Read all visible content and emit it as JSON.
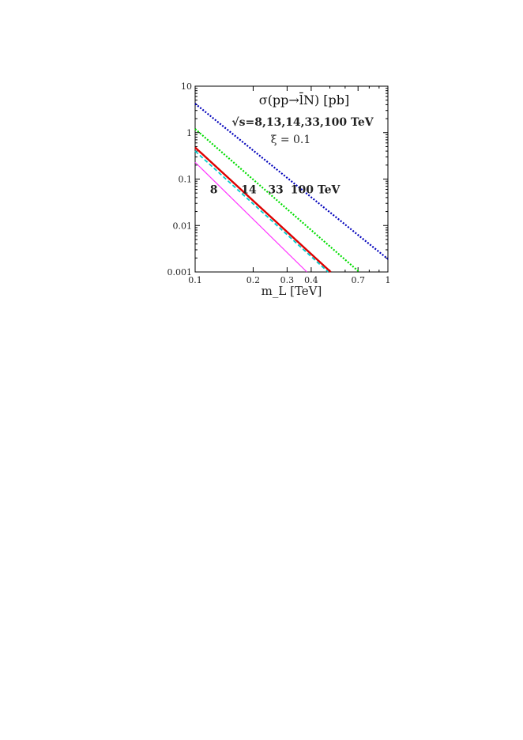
{
  "chart_data": {
    "type": "line",
    "title": "σ(pp→l̄N) [pb]",
    "annotations": [
      "√s=8,13,14,33,100 TeV",
      "ξ = 0.1"
    ],
    "xlabel": "m_L [TeV]",
    "ylabel": "",
    "xscale": "log",
    "yscale": "log",
    "xlim": [
      0.1,
      1
    ],
    "ylim": [
      0.001,
      10
    ],
    "x_ticks": [
      0.1,
      0.2,
      0.3,
      0.4,
      0.7,
      1
    ],
    "x_tick_labels": [
      "0.1",
      "0.2",
      "0.3",
      "0.4",
      "0.7",
      "1"
    ],
    "y_ticks": [
      0.001,
      0.01,
      0.1,
      1,
      10
    ],
    "y_tick_labels": [
      "0.001",
      "0.01",
      "0.1",
      "1",
      "10"
    ],
    "legend": "none",
    "grid": false,
    "series": [
      {
        "name": "8",
        "color": "#ff33ff",
        "style": "solid",
        "x": [
          0.1,
          0.38
        ],
        "y": [
          0.23,
          0.001
        ]
      },
      {
        "name": "13",
        "color": "#00cccc",
        "style": "dashed",
        "x": [
          0.1,
          0.49
        ],
        "y": [
          0.4,
          0.001
        ]
      },
      {
        "name": "14",
        "color": "#dd0000",
        "style": "solid",
        "x": [
          0.1,
          0.505
        ],
        "y": [
          0.48,
          0.001
        ]
      },
      {
        "name": "33",
        "color": "#00dd00",
        "style": "dotted",
        "x": [
          0.1,
          0.71
        ],
        "y": [
          1.2,
          0.001
        ]
      },
      {
        "name": "100 TeV",
        "color": "#0000bb",
        "style": "dotted",
        "x": [
          0.1,
          1.0
        ],
        "y": [
          4.2,
          0.0019
        ]
      }
    ],
    "series_labels": [
      {
        "text": "8",
        "x": 0.125,
        "y": 0.06
      },
      {
        "text": "14",
        "x": 0.19,
        "y": 0.06
      },
      {
        "text": "33",
        "x": 0.262,
        "y": 0.06
      },
      {
        "text": "100 TeV",
        "x": 0.42,
        "y": 0.06
      }
    ]
  }
}
